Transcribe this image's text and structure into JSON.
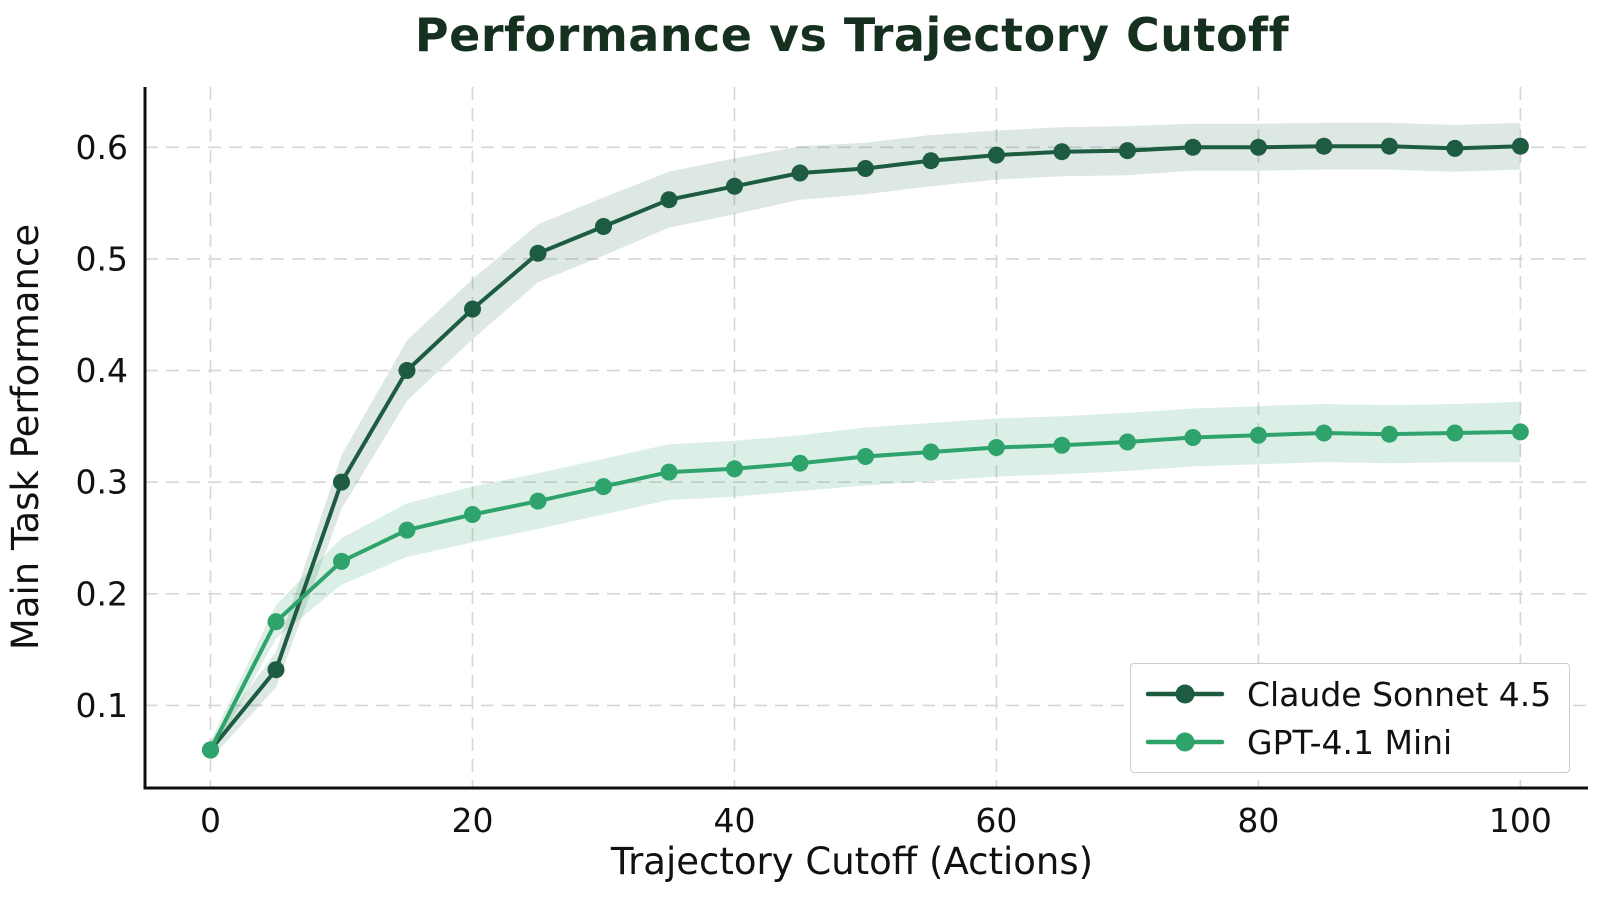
{
  "chart_data": {
    "type": "line",
    "title": "Performance vs Trajectory Cutoff",
    "xlabel": "Trajectory Cutoff (Actions)",
    "ylabel": "Main Task Performance",
    "x": [
      0,
      5,
      10,
      15,
      20,
      25,
      30,
      35,
      40,
      45,
      50,
      55,
      60,
      65,
      70,
      75,
      80,
      85,
      90,
      95,
      100
    ],
    "x_ticks": [
      0,
      20,
      40,
      60,
      80,
      100
    ],
    "y_ticks": [
      0.1,
      0.2,
      0.3,
      0.4,
      0.5,
      0.6
    ],
    "xlim": [
      -5,
      105.16
    ],
    "ylim": [
      0.026,
      0.654
    ],
    "grid": "dashed",
    "legend_position": "lower right",
    "series": [
      {
        "name": "Claude Sonnet 4.5",
        "color": "#1d5c40",
        "band_color": "rgba(29,92,64,0.15)",
        "values": [
          0.06,
          0.132,
          0.3,
          0.4,
          0.455,
          0.505,
          0.529,
          0.553,
          0.565,
          0.577,
          0.581,
          0.588,
          0.593,
          0.596,
          0.597,
          0.6,
          0.6,
          0.601,
          0.601,
          0.599,
          0.601
        ],
        "band": [
          0.008,
          0.016,
          0.024,
          0.027,
          0.027,
          0.026,
          0.026,
          0.025,
          0.025,
          0.024,
          0.023,
          0.023,
          0.022,
          0.022,
          0.022,
          0.021,
          0.021,
          0.021,
          0.021,
          0.021,
          0.021
        ]
      },
      {
        "name": "GPT-4.1 Mini",
        "color": "#2ea36c",
        "band_color": "rgba(46,163,108,0.17)",
        "values": [
          0.06,
          0.175,
          0.229,
          0.257,
          0.271,
          0.283,
          0.296,
          0.309,
          0.312,
          0.317,
          0.323,
          0.327,
          0.331,
          0.333,
          0.336,
          0.34,
          0.342,
          0.344,
          0.343,
          0.344,
          0.345
        ],
        "band": [
          0.008,
          0.015,
          0.021,
          0.024,
          0.025,
          0.025,
          0.025,
          0.025,
          0.025,
          0.025,
          0.026,
          0.026,
          0.026,
          0.026,
          0.026,
          0.026,
          0.026,
          0.026,
          0.026,
          0.026,
          0.027
        ]
      }
    ],
    "colors": {
      "title": "#163020",
      "axis_text": "#111111",
      "grid": "#d6d6d6",
      "spine": "#0f0f0f",
      "legend_border": "#cccccc"
    }
  }
}
